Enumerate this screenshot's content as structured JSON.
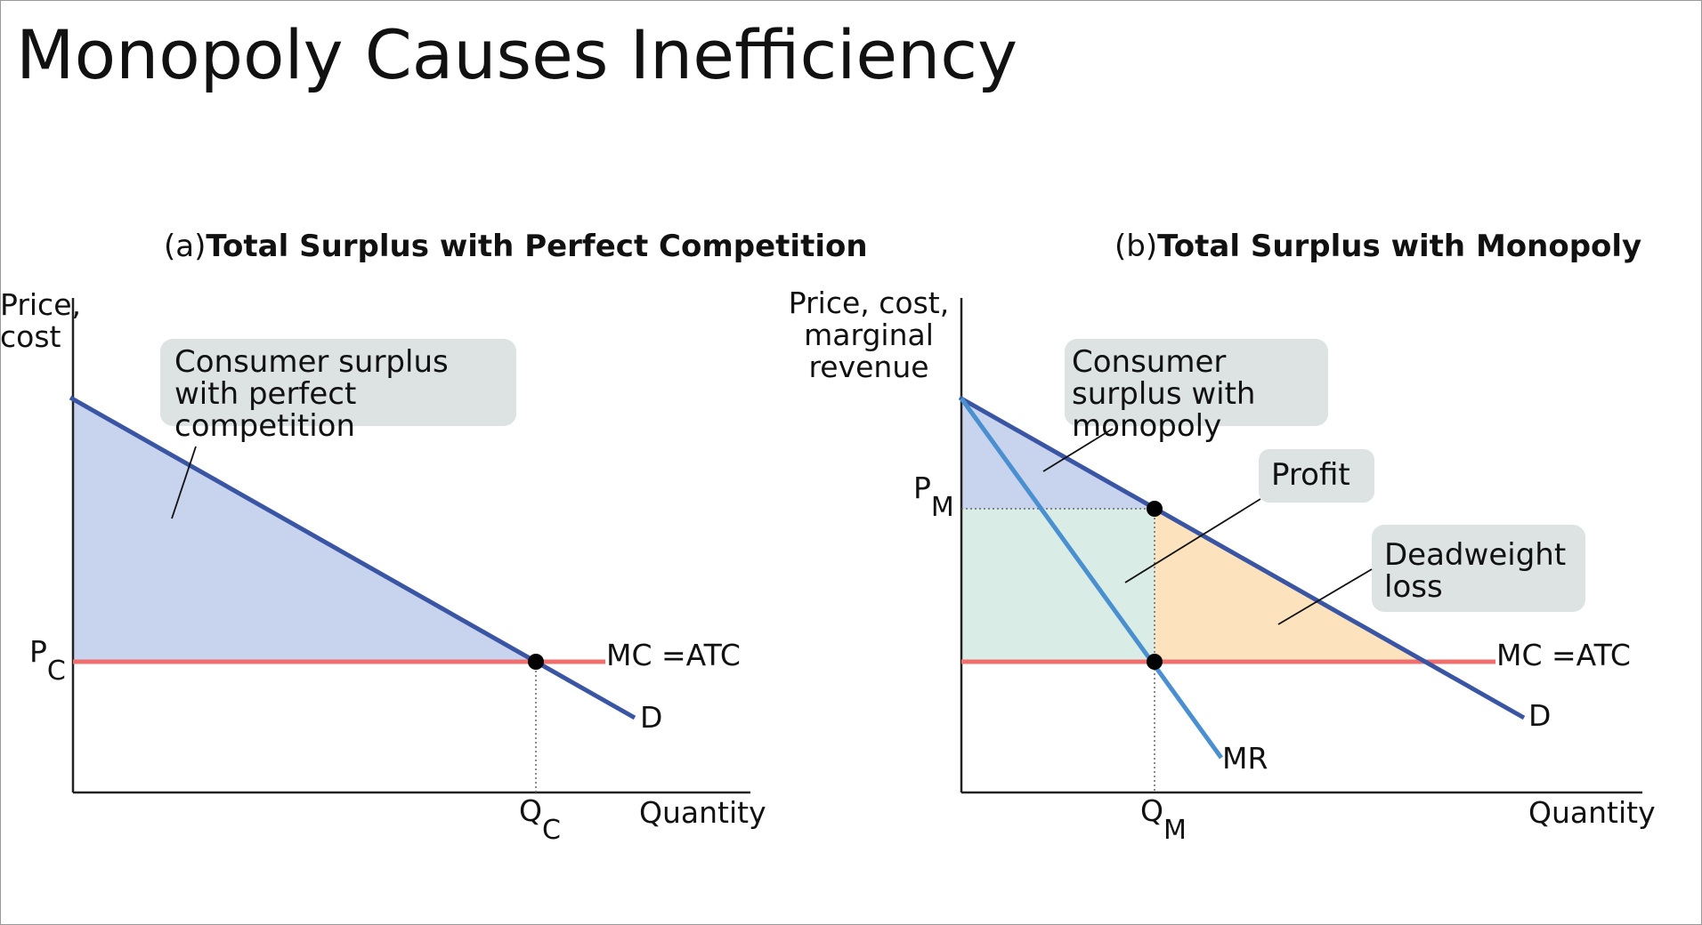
{
  "slide": {
    "title": "Monopoly Causes Inefficiency"
  },
  "colors": {
    "demand": "#3a55a3",
    "mr": "#4a8fd0",
    "mc_atc": "#ef6f6f",
    "consumer_surplus": "#c8d3ee",
    "profit": "#d9ede6",
    "deadweight_loss": "#fde3bd",
    "callout_bg": "#dde3e3"
  },
  "panel_a": {
    "prefix": "(a)",
    "title": "Total Surplus with Perfect Competition",
    "y_axis_label": [
      "Price,",
      "cost"
    ],
    "x_axis_label": "Quantity",
    "price_label": "P",
    "price_sub": "C",
    "quantity_label": "Q",
    "quantity_sub": "C",
    "mc_label": "MC =ATC",
    "demand_label": "D",
    "callout": [
      "Consumer surplus",
      "with perfect",
      "competition"
    ]
  },
  "panel_b": {
    "prefix": "(b)",
    "title": "Total Surplus with Monopoly",
    "y_axis_label": [
      "Price, cost,",
      "marginal",
      "revenue"
    ],
    "x_axis_label": "Quantity",
    "price_label": "P",
    "price_sub": "M",
    "quantity_label": "Q",
    "quantity_sub": "M",
    "mc_label": "MC =ATC",
    "demand_label": "D",
    "mr_label": "MR",
    "callout_consumer": [
      "Consumer",
      "surplus with",
      "monopoly"
    ],
    "callout_profit": "Profit",
    "callout_dwl": [
      "Deadweight",
      "loss"
    ]
  }
}
